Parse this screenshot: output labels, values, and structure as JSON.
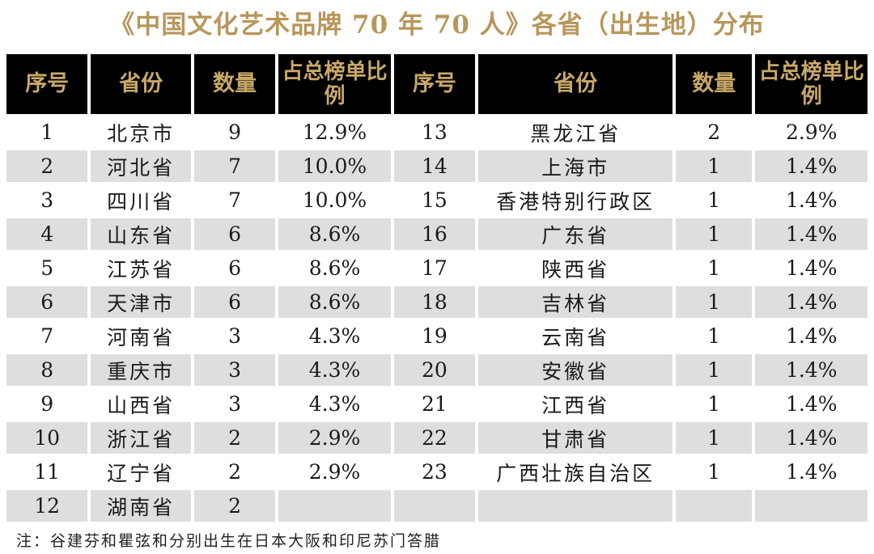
{
  "title": "《中国文化艺术品牌 70 年 70 人》各省（出生地）分布",
  "headers": {
    "left": [
      "序号",
      "省份",
      "数量",
      "占总榜单比例"
    ],
    "right": [
      "序号",
      "省份",
      "数量",
      "占总榜单比例"
    ]
  },
  "rows": [
    {
      "l": [
        "1",
        "北京市",
        "9",
        "12.9%"
      ],
      "r": [
        "13",
        "黑龙江省",
        "2",
        "2.9%"
      ]
    },
    {
      "l": [
        "2",
        "河北省",
        "7",
        "10.0%"
      ],
      "r": [
        "14",
        "上海市",
        "1",
        "1.4%"
      ]
    },
    {
      "l": [
        "3",
        "四川省",
        "7",
        "10.0%"
      ],
      "r": [
        "15",
        "香港特别行政区",
        "1",
        "1.4%"
      ]
    },
    {
      "l": [
        "4",
        "山东省",
        "6",
        "8.6%"
      ],
      "r": [
        "16",
        "广东省",
        "1",
        "1.4%"
      ]
    },
    {
      "l": [
        "5",
        "江苏省",
        "6",
        "8.6%"
      ],
      "r": [
        "17",
        "陕西省",
        "1",
        "1.4%"
      ]
    },
    {
      "l": [
        "6",
        "天津市",
        "6",
        "8.6%"
      ],
      "r": [
        "18",
        "吉林省",
        "1",
        "1.4%"
      ]
    },
    {
      "l": [
        "7",
        "河南省",
        "3",
        "4.3%"
      ],
      "r": [
        "19",
        "云南省",
        "1",
        "1.4%"
      ]
    },
    {
      "l": [
        "8",
        "重庆市",
        "3",
        "4.3%"
      ],
      "r": [
        "20",
        "安徽省",
        "1",
        "1.4%"
      ]
    },
    {
      "l": [
        "9",
        "山西省",
        "3",
        "4.3%"
      ],
      "r": [
        "21",
        "江西省",
        "1",
        "1.4%"
      ]
    },
    {
      "l": [
        "10",
        "浙江省",
        "2",
        "2.9%"
      ],
      "r": [
        "22",
        "甘肃省",
        "1",
        "1.4%"
      ]
    },
    {
      "l": [
        "11",
        "辽宁省",
        "2",
        "2.9%"
      ],
      "r": [
        "23",
        "广西壮族自治区",
        "1",
        "1.4%"
      ]
    },
    {
      "l": [
        "12",
        "湖南省",
        "2",
        ""
      ],
      "r": [
        "",
        "",
        "",
        ""
      ]
    }
  ],
  "note": "注：谷建芬和瞿弦和分别出生在日本大阪和印尼苏门答腊"
}
